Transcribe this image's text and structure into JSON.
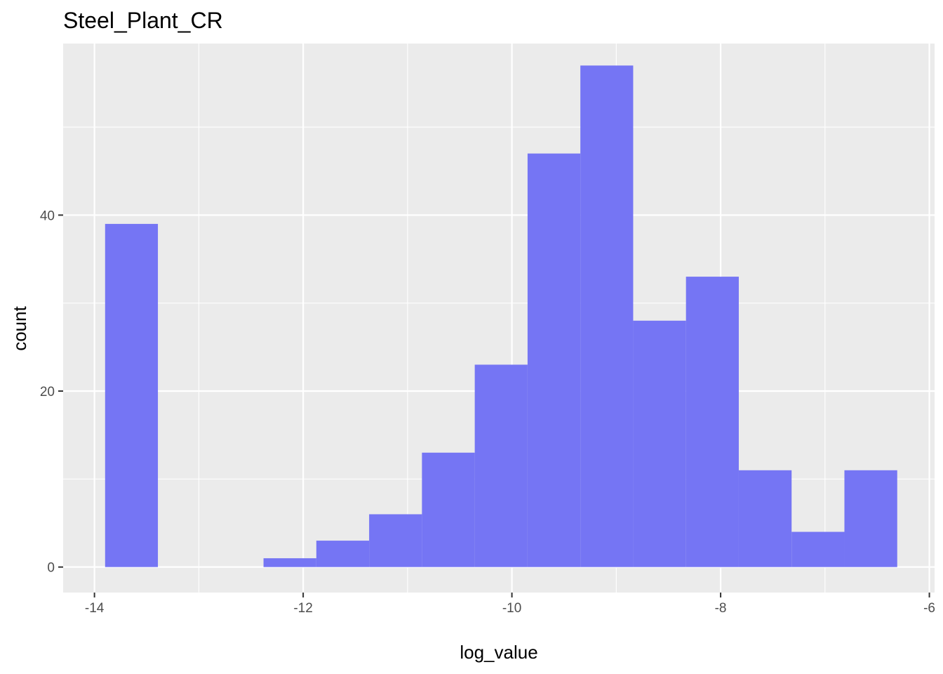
{
  "chart_data": {
    "type": "bar",
    "subtype": "histogram",
    "title": "Steel_Plant_CR",
    "xlabel": "log_value",
    "ylabel": "count",
    "xlim": [
      -14.3,
      -5.95
    ],
    "ylim": [
      -2.9,
      59.5
    ],
    "x_ticks": [
      -14,
      -12,
      -10,
      -8,
      -6
    ],
    "x_tick_labels": [
      "-14",
      "-12",
      "-10",
      "-8",
      "-6"
    ],
    "y_ticks": [
      0,
      20,
      40
    ],
    "y_tick_labels": [
      "0",
      "20",
      "40"
    ],
    "x_minor_gridlines": [
      -13,
      -11,
      -9,
      -7
    ],
    "y_minor_gridlines": [
      10,
      30,
      50
    ],
    "grid": true,
    "bin_width": 0.506,
    "bins": [
      {
        "x0": -13.898,
        "x1": -13.392,
        "count": 39
      },
      {
        "x0": -12.38,
        "x1": -11.874,
        "count": 1
      },
      {
        "x0": -11.874,
        "x1": -11.368,
        "count": 3
      },
      {
        "x0": -11.368,
        "x1": -10.862,
        "count": 6
      },
      {
        "x0": -10.862,
        "x1": -10.356,
        "count": 13
      },
      {
        "x0": -10.356,
        "x1": -9.85,
        "count": 23
      },
      {
        "x0": -9.85,
        "x1": -9.344,
        "count": 47
      },
      {
        "x0": -9.344,
        "x1": -8.838,
        "count": 57
      },
      {
        "x0": -8.838,
        "x1": -8.332,
        "count": 28
      },
      {
        "x0": -8.332,
        "x1": -7.826,
        "count": 33
      },
      {
        "x0": -7.826,
        "x1": -7.32,
        "count": 11
      },
      {
        "x0": -7.32,
        "x1": -6.814,
        "count": 4
      },
      {
        "x0": -6.814,
        "x1": -6.308,
        "count": 11
      }
    ],
    "colors": {
      "bar_fill": "#7575f4",
      "panel_background": "#ebebeb",
      "gridline": "#ffffff",
      "tick_text": "#4d4d4d",
      "tick_mark": "#333333"
    }
  }
}
